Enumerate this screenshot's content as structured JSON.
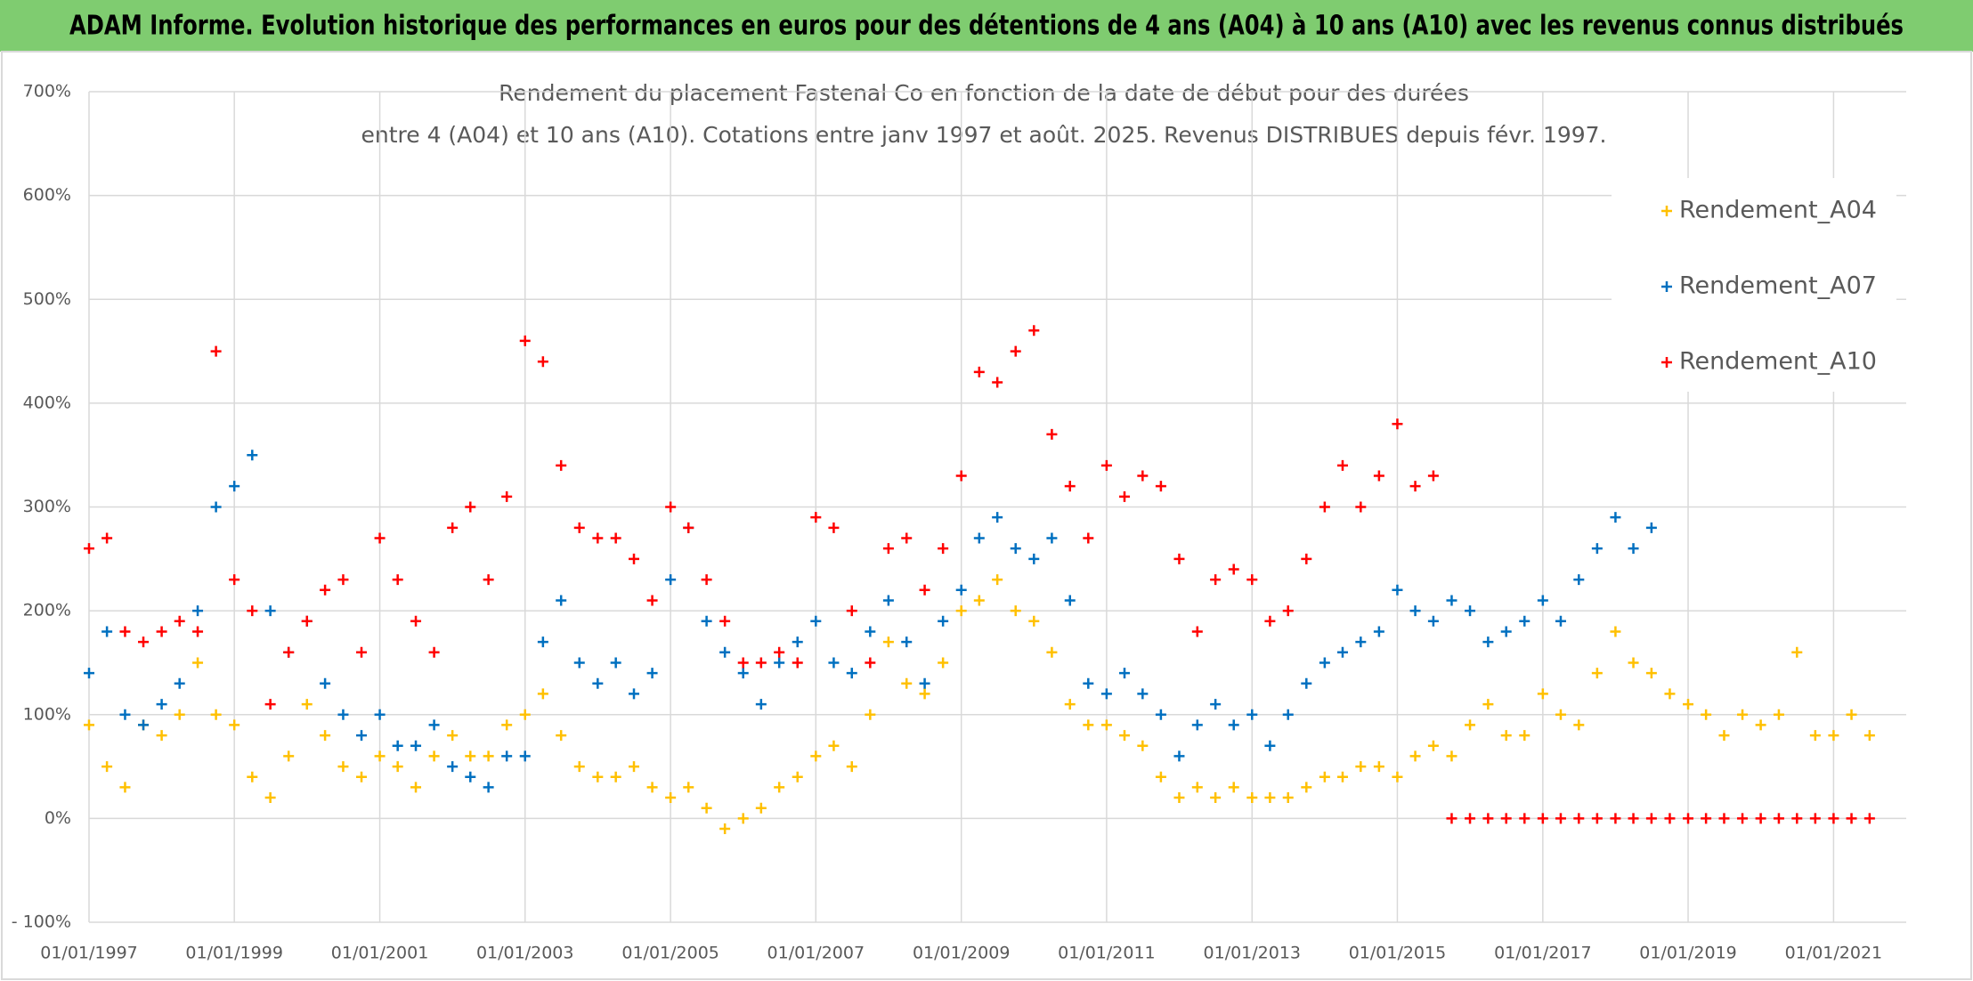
{
  "header": {
    "title": "ADAM Informe. Evolution historique des performances en euros pour des détentions de 4 ans (A04) à 10 ans (A10) avec les revenus connus distribués"
  },
  "chart_data": {
    "type": "scatter",
    "title": "Rendement du placement Fastenal Co en fonction de la date de début pour des durées",
    "subtitle": "entre 4 (A04) et 10 ans (A10). Cotations entre janv 1997 et août. 2025. Revenus DISTRIBUES depuis févr. 1997.",
    "marker": "+",
    "grid": true,
    "legend": "upper right",
    "xlim": [
      "01/01/1997",
      "01/01/2022"
    ],
    "xticks": [
      "01/01/1997",
      "01/01/1999",
      "01/01/2001",
      "01/01/2003",
      "01/01/2005",
      "01/01/2007",
      "01/01/2009",
      "01/01/2011",
      "01/01/2013",
      "01/01/2015",
      "01/01/2017",
      "01/01/2019",
      "01/01/2021"
    ],
    "ylim": [
      -100,
      700
    ],
    "yticks": [
      {
        "value": -100,
        "label": "- 100%"
      },
      {
        "value": 0,
        "label": "0%"
      },
      {
        "value": 100,
        "label": "100%"
      },
      {
        "value": 200,
        "label": "200%"
      },
      {
        "value": 300,
        "label": "300%"
      },
      {
        "value": 400,
        "label": "400%"
      },
      {
        "value": 500,
        "label": "500%"
      },
      {
        "value": 600,
        "label": "600%"
      },
      {
        "value": 700,
        "label": "700%"
      }
    ],
    "x": [
      "01/01/1997",
      "01/04/1997",
      "01/07/1997",
      "01/10/1997",
      "01/01/1998",
      "01/04/1998",
      "01/07/1998",
      "01/10/1998",
      "01/01/1999",
      "01/04/1999",
      "01/07/1999",
      "01/10/1999",
      "01/01/2000",
      "01/04/2000",
      "01/07/2000",
      "01/10/2000",
      "01/01/2001",
      "01/04/2001",
      "01/07/2001",
      "01/10/2001",
      "01/01/2002",
      "01/04/2002",
      "01/07/2002",
      "01/10/2002",
      "01/01/2003",
      "01/04/2003",
      "01/07/2003",
      "01/10/2003",
      "01/01/2004",
      "01/04/2004",
      "01/07/2004",
      "01/10/2004",
      "01/01/2005",
      "01/04/2005",
      "01/07/2005",
      "01/10/2005",
      "01/01/2006",
      "01/04/2006",
      "01/07/2006",
      "01/10/2006",
      "01/01/2007",
      "01/04/2007",
      "01/07/2007",
      "01/10/2007",
      "01/01/2008",
      "01/04/2008",
      "01/07/2008",
      "01/10/2008",
      "01/01/2009",
      "01/04/2009",
      "01/07/2009",
      "01/10/2009",
      "01/01/2010",
      "01/04/2010",
      "01/07/2010",
      "01/10/2010",
      "01/01/2011",
      "01/04/2011",
      "01/07/2011",
      "01/10/2011",
      "01/01/2012",
      "01/04/2012",
      "01/07/2012",
      "01/10/2012",
      "01/01/2013",
      "01/04/2013",
      "01/07/2013",
      "01/10/2013",
      "01/01/2014",
      "01/04/2014",
      "01/07/2014",
      "01/10/2014",
      "01/01/2015",
      "01/04/2015",
      "01/07/2015",
      "01/10/2015",
      "01/01/2016",
      "01/04/2016",
      "01/07/2016",
      "01/10/2016",
      "01/01/2017",
      "01/04/2017",
      "01/07/2017",
      "01/10/2017",
      "01/01/2018",
      "01/04/2018",
      "01/07/2018",
      "01/10/2018",
      "01/01/2019",
      "01/04/2019",
      "01/07/2019",
      "01/10/2019",
      "01/01/2020",
      "01/04/2020",
      "01/07/2020",
      "01/10/2020",
      "01/01/2021",
      "01/04/2021",
      "01/07/2021"
    ],
    "series": [
      {
        "name": "Rendement_A04",
        "color": "#ffc000",
        "values": [
          90,
          50,
          30,
          90,
          80,
          100,
          150,
          100,
          90,
          40,
          20,
          60,
          110,
          80,
          50,
          40,
          60,
          50,
          30,
          60,
          80,
          60,
          60,
          90,
          100,
          120,
          80,
          50,
          40,
          40,
          50,
          30,
          20,
          30,
          10,
          -10,
          0,
          10,
          30,
          40,
          60,
          70,
          50,
          100,
          170,
          130,
          120,
          150,
          200,
          210,
          230,
          200,
          190,
          160,
          110,
          90,
          90,
          80,
          70,
          40,
          20,
          30,
          20,
          30,
          20,
          20,
          20,
          30,
          40,
          40,
          50,
          50,
          40,
          60,
          70,
          60,
          90,
          110,
          80,
          80,
          120,
          100,
          90,
          140,
          180,
          150,
          140,
          120,
          110,
          100,
          80,
          100,
          90,
          100,
          160,
          80,
          80,
          100,
          80
        ]
      },
      {
        "name": "Rendement_A07",
        "color": "#0070c0",
        "values": [
          140,
          180,
          100,
          90,
          110,
          130,
          200,
          300,
          320,
          350,
          200,
          160,
          190,
          130,
          100,
          80,
          100,
          70,
          70,
          90,
          50,
          40,
          30,
          60,
          60,
          170,
          210,
          150,
          130,
          150,
          120,
          140,
          230,
          280,
          190,
          160,
          140,
          110,
          150,
          170,
          190,
          150,
          140,
          180,
          210,
          170,
          130,
          190,
          220,
          270,
          290,
          260,
          250,
          270,
          210,
          130,
          120,
          140,
          120,
          100,
          60,
          90,
          110,
          90,
          100,
          70,
          100,
          130,
          150,
          160,
          170,
          180,
          220,
          200,
          190,
          210,
          200,
          170,
          180,
          190,
          210,
          190,
          230,
          260,
          290,
          260,
          280,
          null,
          null,
          null,
          null,
          null,
          null,
          null,
          null,
          null,
          null,
          null,
          null
        ]
      },
      {
        "name": "Rendement_A10",
        "color": "#ff0000",
        "values": [
          260,
          270,
          180,
          170,
          180,
          190,
          180,
          450,
          230,
          200,
          110,
          160,
          190,
          220,
          230,
          160,
          270,
          230,
          190,
          160,
          280,
          300,
          230,
          310,
          460,
          440,
          340,
          280,
          270,
          270,
          250,
          210,
          300,
          280,
          230,
          190,
          150,
          150,
          160,
          150,
          290,
          280,
          200,
          150,
          260,
          270,
          220,
          260,
          330,
          430,
          420,
          450,
          470,
          370,
          320,
          270,
          340,
          310,
          330,
          320,
          250,
          180,
          230,
          240,
          230,
          190,
          200,
          250,
          300,
          340,
          300,
          330,
          380,
          320,
          330,
          0,
          0,
          0,
          0,
          0,
          0,
          0,
          0,
          0,
          0,
          0,
          0,
          0,
          0,
          0,
          0,
          0,
          0,
          0,
          0,
          0,
          0,
          0,
          0
        ]
      }
    ]
  }
}
